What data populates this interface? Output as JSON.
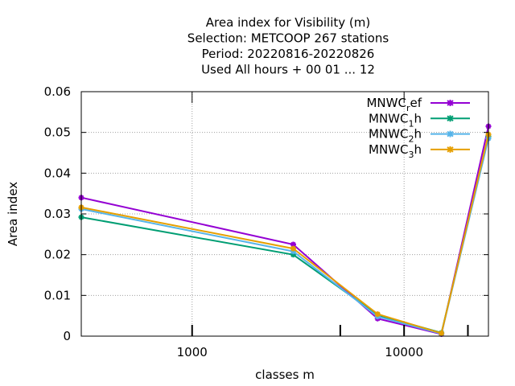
{
  "chart_data": {
    "type": "line",
    "title_lines": [
      "Area index  for Visibility (m)",
      "Selection: METCOOP    267 stations",
      "Period: 20220816-20220826",
      "Used  All hours + 00 01 ... 12"
    ],
    "xlabel": "classes m",
    "ylabel": "Area index",
    "x_scale": "log",
    "xlim": [
      300,
      25000
    ],
    "ylim": [
      0,
      0.06
    ],
    "x_ticks": [
      {
        "value": 1000,
        "label": "1000"
      },
      {
        "value": 10000,
        "label": "10000"
      }
    ],
    "x_minor_ticks": [
      5000,
      20000
    ],
    "y_ticks": [
      {
        "value": 0,
        "label": "0"
      },
      {
        "value": 0.01,
        "label": "0.01"
      },
      {
        "value": 0.02,
        "label": "0.02"
      },
      {
        "value": 0.03,
        "label": "0.03"
      },
      {
        "value": 0.04,
        "label": "0.04"
      },
      {
        "value": 0.05,
        "label": "0.05"
      },
      {
        "value": 0.06,
        "label": "0.06"
      }
    ],
    "grid": true,
    "legend_position": "top-right",
    "x": [
      300,
      3000,
      7500,
      15000,
      25000
    ],
    "series": [
      {
        "name_base": "MNWC",
        "name_sub": "r",
        "name_tail": "ef",
        "color": "#9400d3",
        "values": [
          0.034,
          0.0225,
          0.0043,
          0.0005,
          0.0515
        ]
      },
      {
        "name_base": "MNWC",
        "name_sub": "1",
        "name_tail": "h",
        "color": "#009e73",
        "values": [
          0.0292,
          0.02,
          0.0052,
          0.0008,
          0.049
        ]
      },
      {
        "name_base": "MNWC",
        "name_sub": "2",
        "name_tail": "h",
        "color": "#56b4e9",
        "values": [
          0.0312,
          0.0208,
          0.0048,
          0.0006,
          0.0485
        ]
      },
      {
        "name_base": "MNWC",
        "name_sub": "3",
        "name_tail": "h",
        "color": "#e69f00",
        "values": [
          0.0316,
          0.0215,
          0.0054,
          0.0007,
          0.0495
        ]
      }
    ]
  }
}
